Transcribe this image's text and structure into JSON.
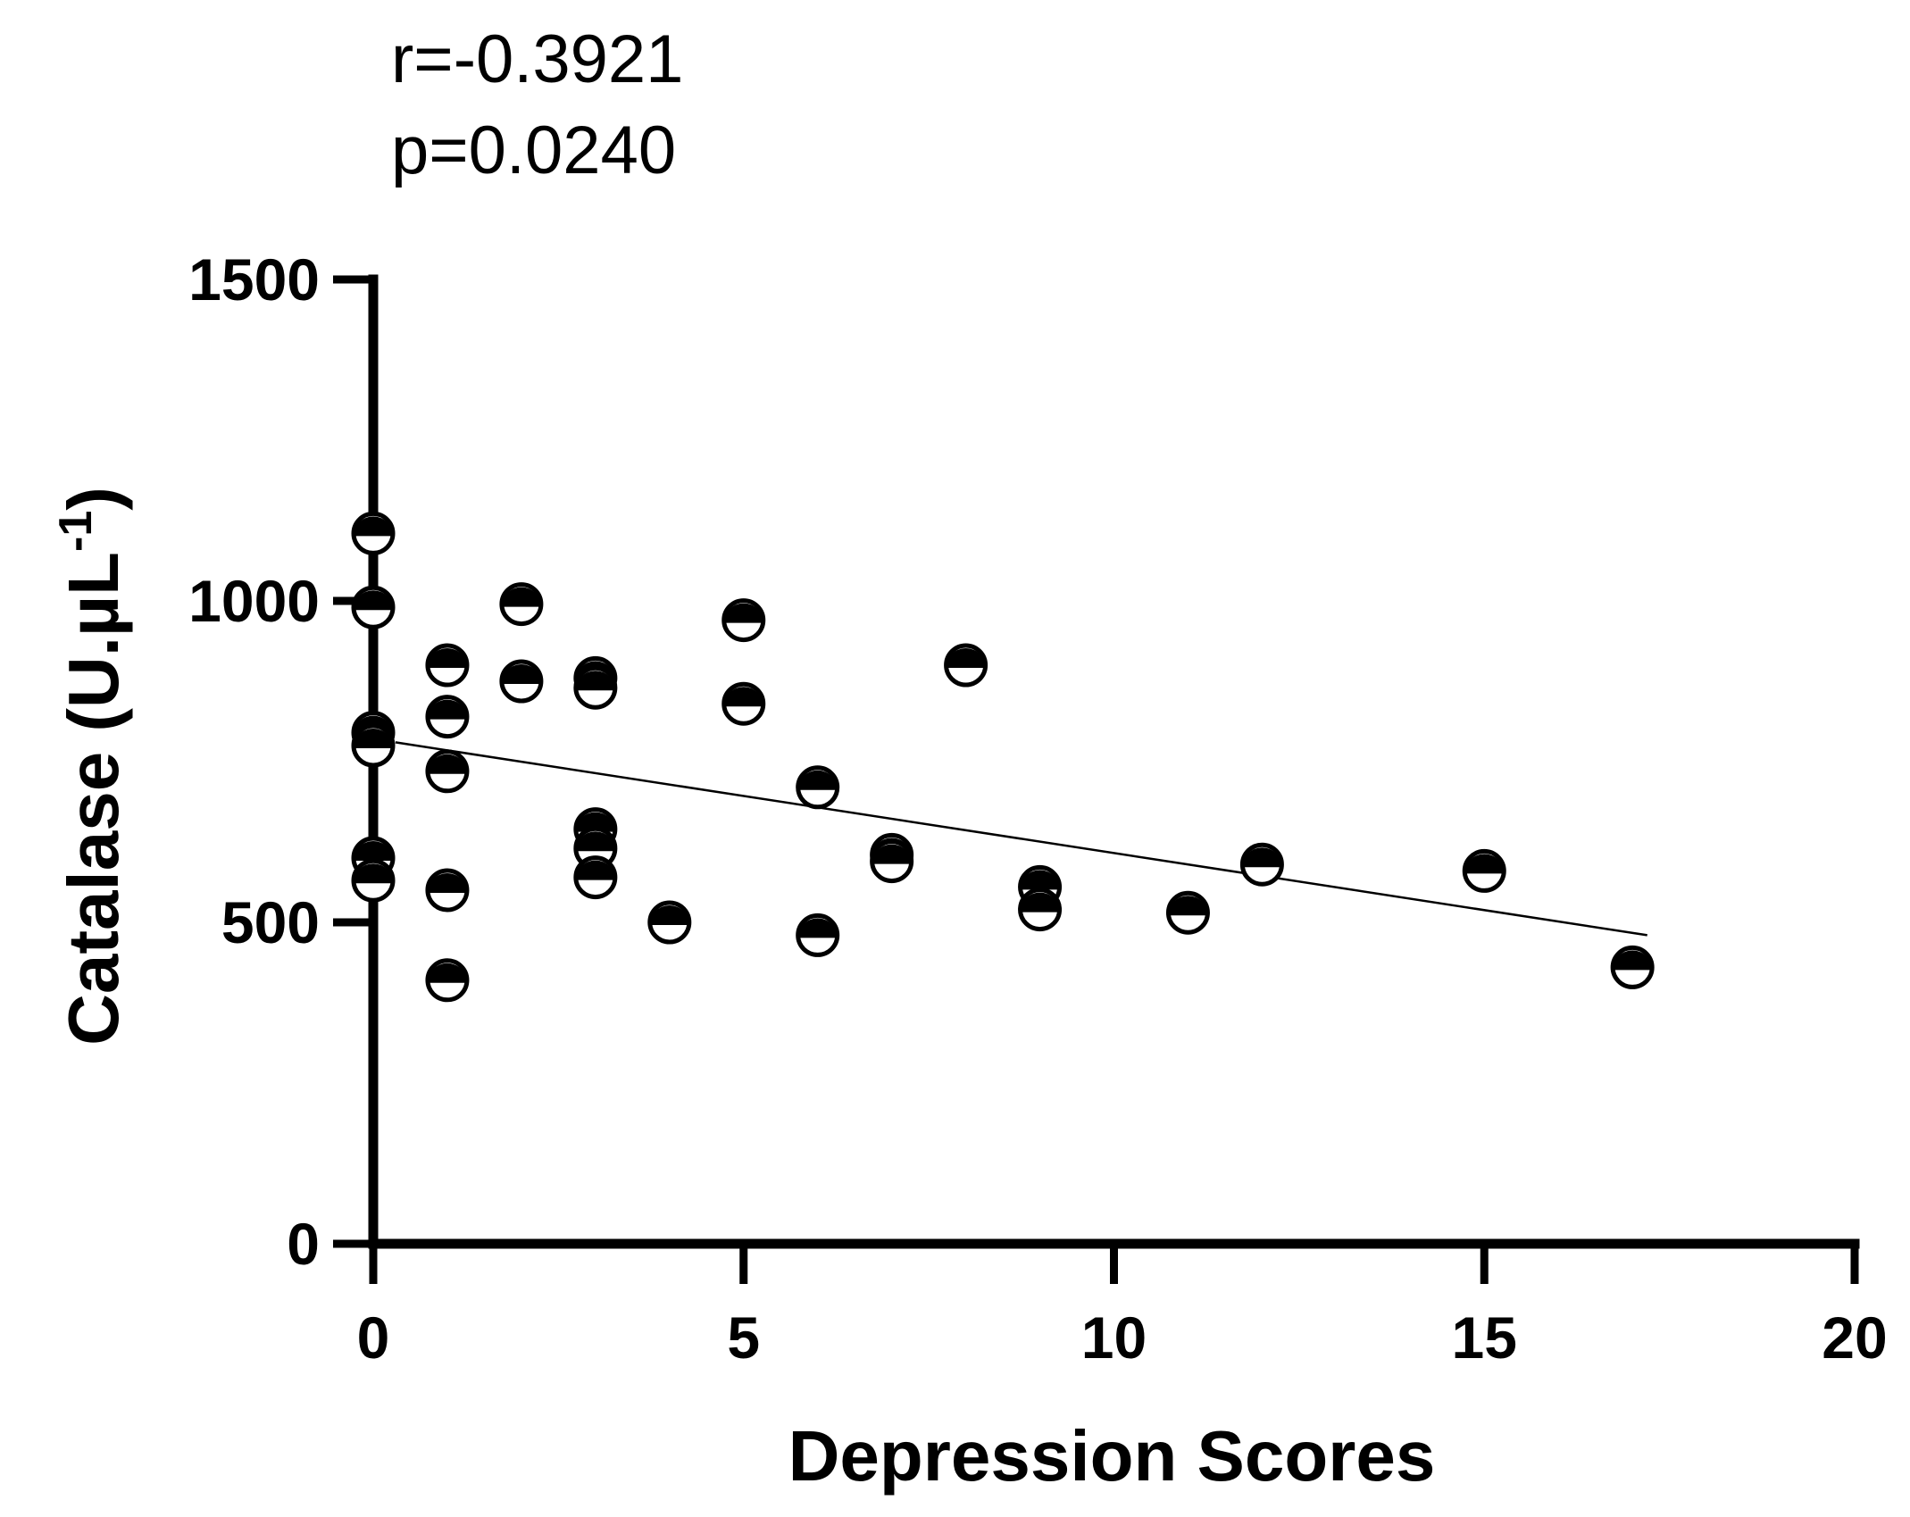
{
  "chart_data": {
    "type": "scatter",
    "title": "",
    "annotations": [
      "r=-0.3921",
      "p=0.0240"
    ],
    "xlabel": "Depression Scores",
    "ylabel": "Catalase (U.µL",
    "ylabel_superscript": "-1",
    "ylabel_close": ")",
    "xlim": [
      0,
      20
    ],
    "ylim": [
      0,
      1500
    ],
    "xticks": [
      0,
      5,
      10,
      15,
      20
    ],
    "yticks": [
      0,
      500,
      1000,
      1500
    ],
    "grid": false,
    "marker": "half-filled circle (top black, bottom white)",
    "points": [
      {
        "x": 0,
        "y": 1105
      },
      {
        "x": 0,
        "y": 990
      },
      {
        "x": 0,
        "y": 795
      },
      {
        "x": 0,
        "y": 775
      },
      {
        "x": 0,
        "y": 600
      },
      {
        "x": 0,
        "y": 565
      },
      {
        "x": 1,
        "y": 900
      },
      {
        "x": 1,
        "y": 820
      },
      {
        "x": 1,
        "y": 735
      },
      {
        "x": 1,
        "y": 550
      },
      {
        "x": 1,
        "y": 410
      },
      {
        "x": 2,
        "y": 995
      },
      {
        "x": 2,
        "y": 875
      },
      {
        "x": 3,
        "y": 880
      },
      {
        "x": 3,
        "y": 865
      },
      {
        "x": 3,
        "y": 645
      },
      {
        "x": 3,
        "y": 615
      },
      {
        "x": 3,
        "y": 570
      },
      {
        "x": 4,
        "y": 500
      },
      {
        "x": 5,
        "y": 970
      },
      {
        "x": 5,
        "y": 840
      },
      {
        "x": 6,
        "y": 710
      },
      {
        "x": 6,
        "y": 480
      },
      {
        "x": 7,
        "y": 605
      },
      {
        "x": 7,
        "y": 595
      },
      {
        "x": 8,
        "y": 900
      },
      {
        "x": 9,
        "y": 555
      },
      {
        "x": 9,
        "y": 520
      },
      {
        "x": 11,
        "y": 515
      },
      {
        "x": 12,
        "y": 590
      },
      {
        "x": 15,
        "y": 580
      },
      {
        "x": 17,
        "y": 430
      }
    ],
    "regression_line": {
      "x": [
        0.3,
        17.2
      ],
      "y": [
        780,
        480
      ]
    }
  }
}
